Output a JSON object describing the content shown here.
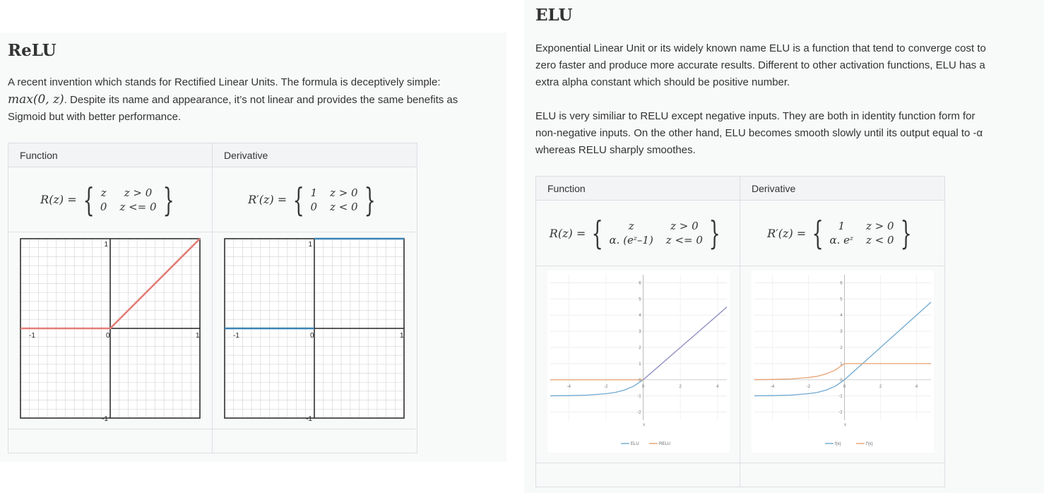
{
  "relu": {
    "title": "ReLU",
    "intro_text": "A recent invention which stands for Rectified Linear Units. The formula is deceptively simple:",
    "formula_inline": "max(0, z)",
    "intro_text_2": ". Despite its name and appearance, it’s not linear and provides the same benefits as",
    "intro_text_3": "Sigmoid but with better performance.",
    "table": {
      "col1_header": "Function",
      "col2_header": "Derivative",
      "function_lhs": "R(z) =",
      "function_cases": [
        [
          "z",
          "z > 0"
        ],
        [
          "0",
          "z <= 0"
        ]
      ],
      "derivative_lhs": "R′(z) =",
      "derivative_cases": [
        [
          "1",
          "z > 0"
        ],
        [
          "0",
          "z < 0"
        ]
      ]
    },
    "function_chart": {
      "type": "line",
      "x_ticks": [
        "-1",
        "0",
        "1"
      ],
      "y_ticks": [
        "1",
        "-1"
      ],
      "xlim": [
        -1,
        1
      ],
      "ylim": [
        -1,
        1
      ],
      "x": [
        -1,
        0,
        1
      ],
      "y": [
        0,
        0,
        1
      ],
      "color": "#e37c78"
    },
    "derivative_chart": {
      "type": "line",
      "x_ticks": [
        "-1",
        "0",
        "1"
      ],
      "y_ticks": [
        "1",
        "-1"
      ],
      "xlim": [
        -1,
        1
      ],
      "ylim": [
        -1,
        1
      ],
      "segments": [
        {
          "x": [
            -1,
            0
          ],
          "y": [
            0,
            0
          ]
        },
        {
          "x": [
            0,
            1
          ],
          "y": [
            1,
            1
          ]
        }
      ],
      "color": "#3a83b6"
    }
  },
  "elu": {
    "title": "ELU",
    "para1_line1": "Exponential Linear Unit or its widely known name ELU is a function that tend to converge cost to",
    "para1_line2": "zero faster and produce more accurate results. Different to other activation functions, ELU has a",
    "para1_line3": "extra alpha constant which should be positive number.",
    "para2_line1": "ELU is very similiar to RELU except negative inputs. They are both in identity function form for",
    "para2_line2": "non-negative inputs. On the other hand, ELU becomes smooth slowly until its output equal to -α",
    "para2_line3": "whereas RELU sharply smoothes.",
    "table": {
      "col1_header": "Function",
      "col2_header": "Derivative",
      "function_lhs": "R(z) =",
      "function_cases": [
        [
          "z",
          "z > 0"
        ],
        [
          "α. (eᶻ–1)",
          "z <= 0"
        ]
      ],
      "derivative_lhs": "R′(z) =",
      "derivative_cases": [
        [
          "1",
          "z > 0"
        ],
        [
          "α. eᶻ",
          "z < 0"
        ]
      ]
    },
    "function_chart": {
      "type": "line",
      "x_ticks": [
        "-4",
        "-2",
        "0",
        "2",
        "4"
      ],
      "y_ticks": [
        "6",
        "5",
        "4",
        "3",
        "2",
        "1",
        "0",
        "-1",
        "-2"
      ],
      "xlabel": "x",
      "xlim": [
        -5,
        4.5
      ],
      "ylim": [
        -2.5,
        6.5
      ],
      "series": [
        {
          "name": "ELU",
          "color": "#6ea8d0",
          "x": [
            -5,
            -4,
            -3,
            -2,
            -1.5,
            -1,
            -0.5,
            0,
            4.5
          ],
          "y": [
            -0.99,
            -0.98,
            -0.95,
            -0.86,
            -0.78,
            -0.63,
            -0.39,
            0,
            4.5
          ]
        },
        {
          "name": "RELU",
          "color": "#e8a070",
          "x": [
            -5,
            0
          ],
          "y": [
            0,
            0
          ]
        },
        {
          "name": "",
          "color": "#9b93c4",
          "x": [
            0,
            4.5
          ],
          "y": [
            0,
            4.5
          ]
        }
      ],
      "legend": [
        {
          "label": "ELU",
          "color": "#6ea8d0"
        },
        {
          "label": "RELU",
          "color": "#e8a070"
        }
      ]
    },
    "derivative_chart": {
      "type": "line",
      "x_ticks": [
        "-4",
        "-2",
        "0",
        "2",
        "4"
      ],
      "y_ticks": [
        "6",
        "5",
        "4",
        "3",
        "2",
        "1",
        "0",
        "-1",
        "-2"
      ],
      "xlabel": "x",
      "xlim": [
        -5,
        4.8
      ],
      "ylim": [
        -2.5,
        6.5
      ],
      "series": [
        {
          "name": "f(x)",
          "color": "#6ea8d0",
          "x": [
            -5,
            -4,
            -3,
            -2,
            -1.5,
            -1,
            -0.5,
            0,
            4.8
          ],
          "y": [
            -0.99,
            -0.98,
            -0.95,
            -0.86,
            -0.78,
            -0.63,
            -0.39,
            0,
            4.8
          ]
        },
        {
          "name": "f'(x)",
          "color": "#e8a070",
          "x": [
            -5,
            -4,
            -3,
            -2,
            -1.5,
            -1,
            -0.5,
            0,
            4.8
          ],
          "y": [
            0.01,
            0.02,
            0.05,
            0.14,
            0.22,
            0.37,
            0.61,
            1,
            1
          ]
        }
      ],
      "legend": [
        {
          "label": "f(x)",
          "color": "#6ea8d0"
        },
        {
          "label": "f'(x)",
          "color": "#e8a070"
        }
      ]
    }
  }
}
